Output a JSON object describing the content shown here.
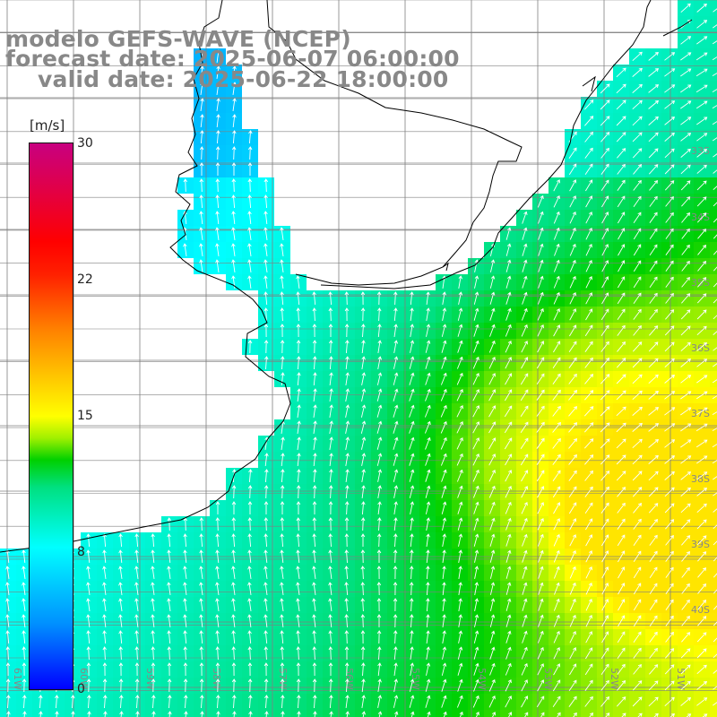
{
  "title": {
    "line1": "modelo GEFS-WAVE (NCEP)",
    "line2": "forecast date: 2025-06-07 06:00:00",
    "line3": "valid date: 2025-06-22 18:00:00"
  },
  "colorbar": {
    "unit": "[m/s]",
    "ticks": [
      "0",
      "8",
      "15",
      "22",
      "30"
    ],
    "range": [
      0,
      30
    ]
  },
  "axes": {
    "lat_labels": [
      "33S",
      "34S",
      "35S",
      "36S",
      "37S",
      "38S",
      "39S",
      "40S"
    ],
    "lon_labels": [
      "61W",
      "60W",
      "59W",
      "58W",
      "57W",
      "56W",
      "55W",
      "54W",
      "53W",
      "52W",
      "51W"
    ]
  },
  "colors": {
    "land": "#ffffff",
    "coastline": "#000000",
    "grid": "#808080",
    "arrows": "#ffffff",
    "title_text": "#888888"
  }
}
